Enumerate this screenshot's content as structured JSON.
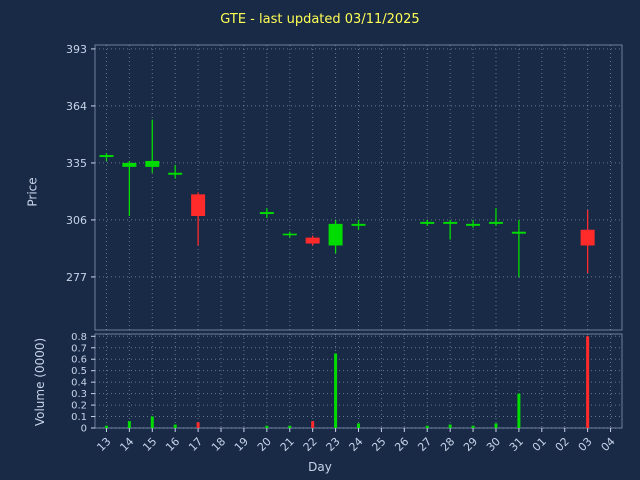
{
  "colors": {
    "background": "#192a47",
    "up": "#00dc00",
    "down": "#ff2a2a",
    "title": "#ffff54",
    "text": "#c7d3e8",
    "grid": "#c7d3e8",
    "spine": "#9db0cf"
  },
  "chart_data": {
    "type": "candlestick",
    "title": "GTE - last updated 03/11/2025",
    "xlabel": "Day",
    "price_ylabel": "Price",
    "volume_ylabel": "Volume (0000)",
    "grid": "dotted",
    "price_ticks": [
      277,
      306,
      335,
      364,
      393
    ],
    "price_range": [
      250,
      395
    ],
    "volume_ticks": [
      0,
      0.1,
      0.2,
      0.3,
      0.4,
      0.5,
      0.6,
      0.7,
      0.8
    ],
    "volume_range": [
      0,
      0.82
    ],
    "categories": [
      "13",
      "14",
      "15",
      "16",
      "17",
      "18",
      "19",
      "20",
      "21",
      "22",
      "23",
      "24",
      "25",
      "26",
      "27",
      "28",
      "29",
      "30",
      "31",
      "01",
      "02",
      "03",
      "04"
    ],
    "ohlc": [
      [
        338,
        340,
        336,
        339
      ],
      [
        333,
        336,
        308,
        335
      ],
      [
        333,
        357,
        330,
        336
      ],
      [
        329,
        334,
        327,
        330
      ],
      [
        319,
        320,
        293,
        308
      ],
      null,
      null,
      [
        309,
        312,
        307,
        310
      ],
      [
        299,
        300,
        297,
        299
      ],
      [
        297,
        298,
        293,
        294
      ],
      [
        293,
        306,
        289,
        304
      ],
      [
        303,
        306,
        301,
        304
      ],
      null,
      null,
      [
        304,
        306,
        303,
        305
      ],
      [
        304,
        306,
        296,
        305
      ],
      [
        303,
        306,
        302,
        304
      ],
      [
        304,
        312,
        303,
        305
      ],
      [
        299,
        306,
        277,
        300
      ],
      null,
      null,
      [
        301,
        311,
        279,
        293
      ],
      null
    ],
    "volume": [
      0.02,
      0.06,
      0.1,
      0.03,
      0.05,
      0,
      0,
      0.02,
      0.02,
      0.06,
      0.65,
      0.04,
      0,
      0,
      0.02,
      0.03,
      0.02,
      0.04,
      0.3,
      0,
      0,
      0.8,
      0
    ]
  }
}
